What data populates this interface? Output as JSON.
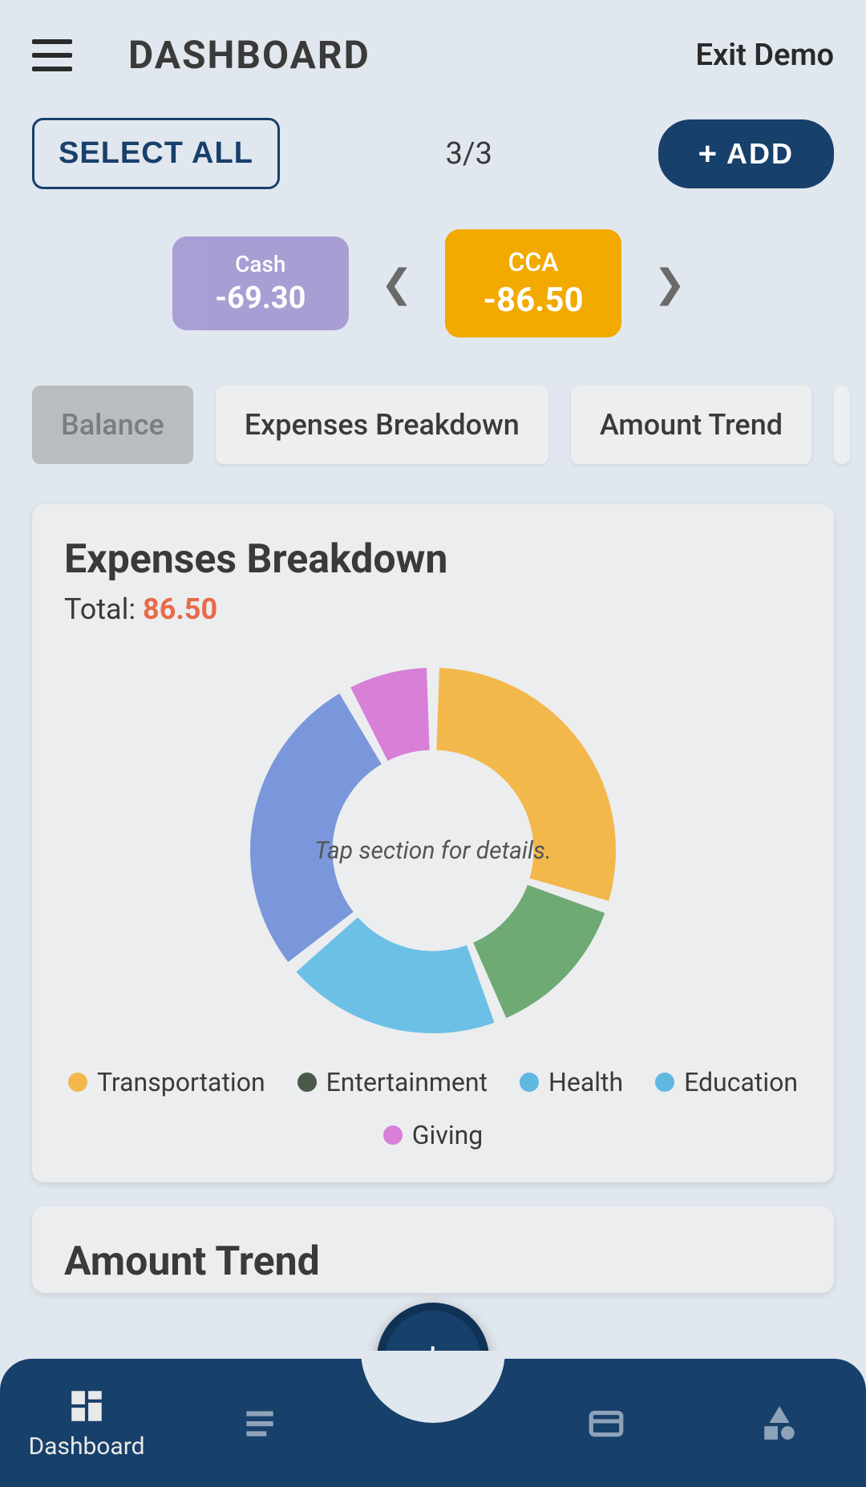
{
  "header": {
    "title": "DASHBOARD",
    "exit": "Exit Demo"
  },
  "toolbar": {
    "select_all": "SELECT ALL",
    "counter": "3/3",
    "add": "ADD"
  },
  "accounts": {
    "left": {
      "label": "Cash",
      "value": "-69.30",
      "bg": "#a69bd2",
      "fg": "#ffffff"
    },
    "center": {
      "label": "CCA",
      "value": "-86.50",
      "bg": "#f2a900",
      "fg": "#ffffff"
    }
  },
  "tabs": {
    "balance": "Balance",
    "expenses": "Expenses Breakdown",
    "trend": "Amount Trend"
  },
  "expenses_panel": {
    "title": "Expenses Breakdown",
    "total_label": "Total: ",
    "total_value": "86.50",
    "center_hint": "Tap section for details.",
    "donut": {
      "type": "donut",
      "inner_radius_pct": 55,
      "gap_deg": 4,
      "background": "#ecedef",
      "slices": [
        {
          "label": "Transportation",
          "value": 30,
          "color": "#f2b84b"
        },
        {
          "label": "Entertainment",
          "value": 14,
          "color": "#6fa974"
        },
        {
          "label": "Health",
          "value": 20,
          "color": "#6cc0e6"
        },
        {
          "label": "Education",
          "value": 28,
          "color": "#7a97db"
        },
        {
          "label": "Giving",
          "value": 8,
          "color": "#d87fd8"
        }
      ],
      "legend_colors": {
        "Transportation": "#f2b84b",
        "Entertainment": "#4a5a4a",
        "Health": "#5fb8e0",
        "Education": "#5fb8e0",
        "Giving": "#d87fd8"
      }
    }
  },
  "trend_panel": {
    "title": "Amount Trend"
  },
  "bottom_nav": {
    "dashboard": "Dashboard"
  },
  "colors": {
    "primary": "#17406b",
    "bg": "#e1e7ee",
    "panel": "#ecedef",
    "accent_red": "#e86a4a"
  }
}
